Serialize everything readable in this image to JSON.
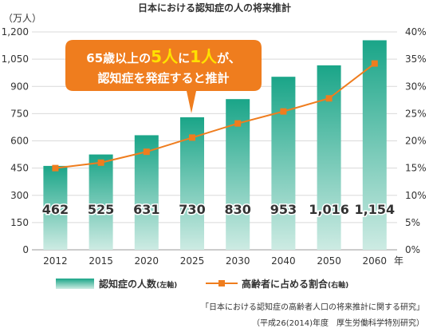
{
  "colors": {
    "bar_top": "#1aa588",
    "bar_bottom": "#cdebe3",
    "line": "#ef7d1e",
    "callout_bg": "#ef7d1e",
    "callout_text": "#ffffff",
    "callout_highlight": "#ffe100",
    "grid": "#d9d9d9",
    "axis_text": "#333333"
  },
  "chart_data": {
    "type": "bar",
    "title": "日本における認知症の人の将来推計",
    "categories": [
      "2012",
      "2015",
      "2020",
      "2025",
      "2030",
      "2040",
      "2050",
      "2060"
    ],
    "x_unit": "年",
    "left_unit": "（万人）",
    "left_ticks": [
      "0",
      "150",
      "300",
      "450",
      "600",
      "750",
      "900",
      "1,050",
      "1,200"
    ],
    "right_ticks": [
      "0%",
      "5%",
      "10%",
      "15%",
      "20%",
      "25%",
      "30%",
      "35%",
      "40%"
    ],
    "ylim_left": [
      0,
      1200
    ],
    "ylim_right": [
      0,
      40
    ],
    "series": [
      {
        "name": "認知症の人数",
        "name_suffix": "(左軸)",
        "type": "bar",
        "axis": "left",
        "values": [
          462,
          525,
          631,
          730,
          830,
          953,
          1016,
          1154
        ],
        "value_labels": [
          "462",
          "525",
          "631",
          "730",
          "830",
          "953",
          "1,016",
          "1,154"
        ]
      },
      {
        "name": "高齢者に占める割合",
        "name_suffix": "(右軸)",
        "type": "line",
        "axis": "right",
        "values": [
          15.0,
          16.0,
          18.0,
          20.6,
          23.2,
          25.4,
          27.8,
          34.2
        ]
      }
    ],
    "grid": true,
    "legend": "bottom",
    "callout": {
      "line1_pre": "65歳以上の",
      "line1_h1": "5人",
      "line1_mid": "に",
      "line1_h2": "1人",
      "line1_post": "が、",
      "line2": "認知症を発症すると推計"
    },
    "source_line1": "「日本における認知症の高齢者人口の将来推計に関する研究」",
    "source_line2": "（平成26(2014)年度　厚生労働科学特別研究）"
  }
}
